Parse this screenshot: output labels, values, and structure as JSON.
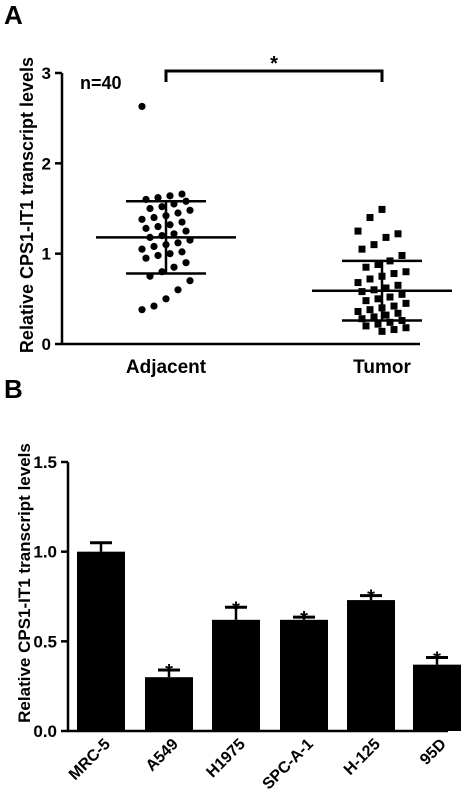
{
  "chart_data": [
    {
      "type": "scatter",
      "panel_label": "A",
      "ylabel": "Relative CPS1-IT1 transcript levels",
      "ylim": [
        0,
        3
      ],
      "yticks": [
        "0",
        "1",
        "2",
        "3"
      ],
      "categories": [
        "Adjacent",
        "Tumor"
      ],
      "annotation": "n=40",
      "significance": "*",
      "summary": [
        {
          "category": "Adjacent",
          "mean": 1.18,
          "sd_low": 0.78,
          "sd_high": 1.58
        },
        {
          "category": "Tumor",
          "mean": 0.59,
          "sd_low": 0.26,
          "sd_high": 0.92
        }
      ],
      "series": [
        {
          "category": "Adjacent",
          "marker": "circle",
          "values": [
            2.63,
            1.66,
            1.64,
            1.62,
            1.6,
            1.58,
            1.55,
            1.52,
            1.5,
            1.48,
            1.45,
            1.42,
            1.4,
            1.38,
            1.35,
            1.32,
            1.3,
            1.28,
            1.25,
            1.22,
            1.2,
            1.18,
            1.15,
            1.12,
            1.1,
            1.08,
            1.05,
            1.02,
            1.0,
            0.98,
            0.95,
            0.9,
            0.85,
            0.8,
            0.75,
            0.7,
            0.6,
            0.5,
            0.42,
            0.38
          ]
        },
        {
          "category": "Tumor",
          "marker": "square",
          "values": [
            1.49,
            1.4,
            1.25,
            1.22,
            1.18,
            1.1,
            1.05,
            0.98,
            0.92,
            0.88,
            0.85,
            0.8,
            0.78,
            0.75,
            0.72,
            0.68,
            0.65,
            0.62,
            0.6,
            0.58,
            0.55,
            0.52,
            0.5,
            0.48,
            0.45,
            0.42,
            0.4,
            0.38,
            0.36,
            0.34,
            0.32,
            0.3,
            0.28,
            0.26,
            0.24,
            0.22,
            0.2,
            0.18,
            0.16,
            0.14
          ]
        }
      ]
    },
    {
      "type": "bar",
      "panel_label": "B",
      "ylabel": "Relative CPS1-IT1 transcript levels",
      "ylim": [
        0,
        1.5
      ],
      "yticks": [
        "0.0",
        "0.5",
        "1.0",
        "1.5"
      ],
      "categories": [
        "MRC-5",
        "A549",
        "H1975",
        "SPC-A-1",
        "H-125",
        "95D"
      ],
      "values": [
        1.0,
        0.3,
        0.62,
        0.62,
        0.73,
        0.37
      ],
      "errors": [
        0.05,
        0.04,
        0.07,
        0.015,
        0.025,
        0.04
      ],
      "significance": [
        "",
        "*",
        "*",
        "*",
        "*",
        "*"
      ],
      "bar_color": "#000000"
    }
  ]
}
